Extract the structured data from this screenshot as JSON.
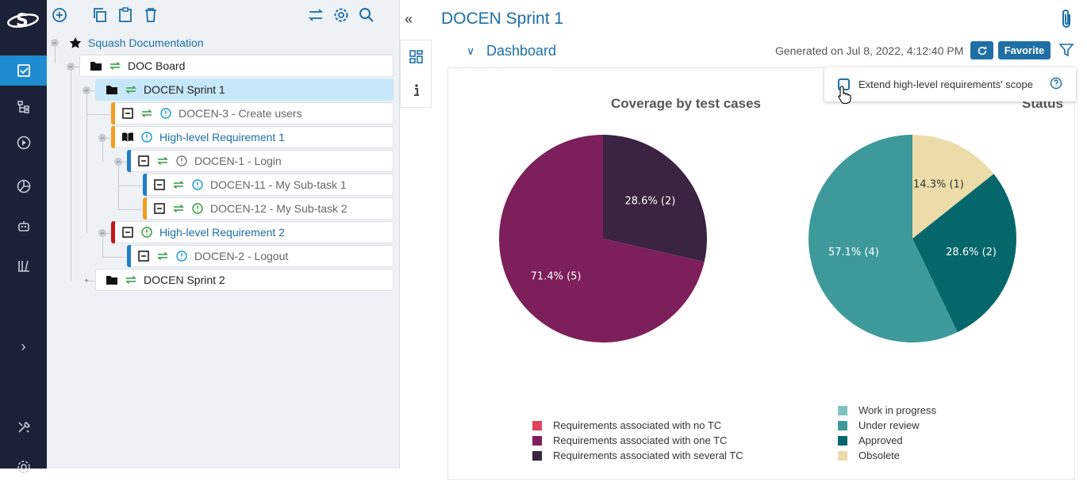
{
  "app": {
    "logo_text": "S"
  },
  "sidebar": {
    "items": [
      {
        "name": "requirements-nav",
        "icon": "checkbox-icon",
        "active": true
      },
      {
        "name": "test-cases-nav",
        "icon": "tree-icon"
      },
      {
        "name": "campaigns-nav",
        "icon": "play-icon"
      },
      {
        "name": "reports-nav",
        "icon": "pie-icon"
      },
      {
        "name": "automation-nav",
        "icon": "robot-icon"
      },
      {
        "name": "library-nav",
        "icon": "library-icon"
      }
    ],
    "expand_label": "›"
  },
  "tree": {
    "root_label": "Squash Documentation",
    "nodes": [
      {
        "label": "DOC Board"
      },
      {
        "label": "DOCEN Sprint 1"
      },
      {
        "label": "DOCEN-3 - Create users"
      },
      {
        "label": "High-level Requirement 1"
      },
      {
        "label": "DOCEN-1 - Login"
      },
      {
        "label": "DOCEN-11 - My Sub-task 1"
      },
      {
        "label": "DOCEN-12 - My Sub-task 2"
      },
      {
        "label": "High-level Requirement 2"
      },
      {
        "label": "DOCEN-2 - Logout"
      },
      {
        "label": "DOCEN Sprint 2"
      }
    ]
  },
  "main": {
    "title": "DOCEN Sprint 1",
    "dashboard_title": "Dashboard",
    "generated": "Generated on Jul 8, 2022, 4:12:40 PM",
    "favorite_label": "Favorite",
    "popup": {
      "checkbox_label": "Extend high-level requirements' scope"
    }
  },
  "colors": {
    "accent": "#1f6fa6",
    "sidebar": "#1b2136"
  },
  "chart_data": [
    {
      "type": "pie",
      "title": "Coverage by test cases",
      "slices": [
        {
          "label": "Requirements associated with no TC",
          "value": 0,
          "percent_label": "",
          "color": "#e0435f"
        },
        {
          "label": "Requirements associated with one TC",
          "value": 5,
          "percent_label": "71.4% (5)",
          "color": "#7d1f5a"
        },
        {
          "label": "Requirements associated with several TC",
          "value": 2,
          "percent_label": "28.6% (2)",
          "color": "#3b2342"
        }
      ]
    },
    {
      "type": "pie",
      "title": "Status",
      "slices": [
        {
          "label": "Work in progress",
          "value": 0,
          "percent_label": "",
          "color": "#7fc4c0"
        },
        {
          "label": "Under review",
          "value": 4,
          "percent_label": "57.1% (4)",
          "color": "#3e9a9a"
        },
        {
          "label": "Approved",
          "value": 2,
          "percent_label": "28.6% (2)",
          "color": "#05676b"
        },
        {
          "label": "Obsolete",
          "value": 1,
          "percent_label": "14.3% (1)",
          "color": "#ecdcaa"
        }
      ]
    }
  ]
}
